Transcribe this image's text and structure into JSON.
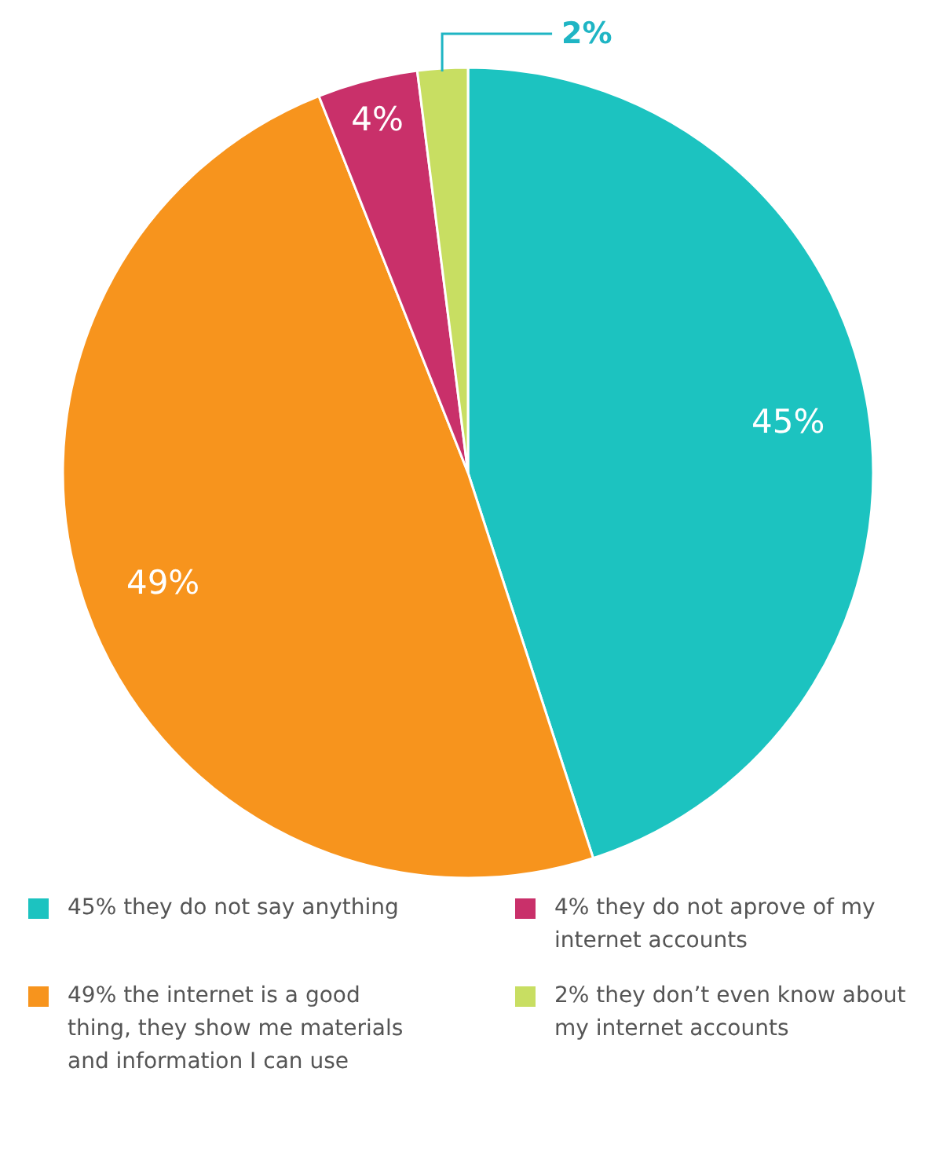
{
  "chart_data": {
    "type": "pie",
    "categories": [
      "45% they do not say anything",
      "49% the internet is a good thing, they show me materials and information I can use",
      "4% they do not aprove of my internet accounts",
      "2% they don’t even know about my internet accounts"
    ],
    "values": [
      45,
      49,
      4,
      2
    ],
    "colors": [
      "#1cc3c0",
      "#f7941d",
      "#c9306a",
      "#c8de62"
    ],
    "value_labels": [
      "45%",
      "49%",
      "4%",
      "2%"
    ],
    "legend": "bottom"
  }
}
